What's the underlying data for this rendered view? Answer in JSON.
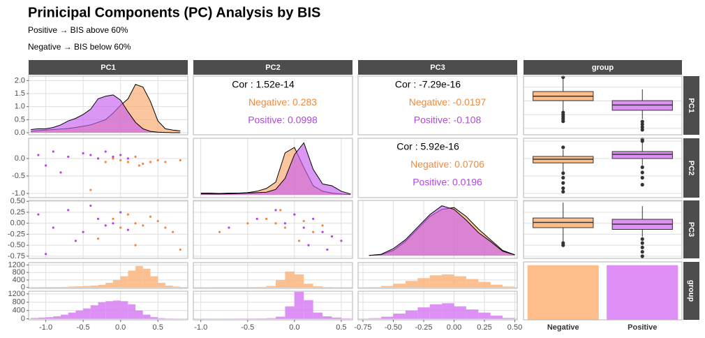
{
  "title": "Prinicipal Components (PC) Analysis by BIS",
  "subtitles": [
    "Positive → BIS above 60%",
    "Negative → BIS below 60%"
  ],
  "column_labels": [
    "PC1",
    "PC2",
    "PC3",
    "group"
  ],
  "row_labels": [
    "PC1",
    "PC2",
    "PC3",
    "group"
  ],
  "chart_data": [
    {
      "type": "density",
      "xlim": [
        -1.23,
        0.9
      ],
      "ylim": [
        -0.08,
        2.17
      ],
      "yticks": [
        {
          "value": 0,
          "label": "0.0"
        },
        0.5,
        {
          "value": 1,
          "label": "1.0"
        },
        1.5,
        {
          "value": 2,
          "label": "2.0"
        }
      ],
      "x": [
        -1.2,
        -1.1,
        -1.0,
        -0.9,
        -0.8,
        -0.7,
        -0.6,
        -0.5,
        -0.4,
        -0.3,
        -0.2,
        -0.1,
        0,
        0.1,
        0.2,
        0.3,
        0.4,
        0.5,
        0.6,
        0.7,
        0.8
      ],
      "series": [
        {
          "color": "#f9a86a",
          "values": [
            0.05,
            0.08,
            0.1,
            0.12,
            0.14,
            0.16,
            0.2,
            0.25,
            0.3,
            0.4,
            0.5,
            0.75,
            1.05,
            1.3,
            1.85,
            1.75,
            1.2,
            0.45,
            0.15,
            0.1,
            0.07
          ]
        },
        {
          "color": "#c660ee",
          "values": [
            0.12,
            0.15,
            0.15,
            0.2,
            0.3,
            0.45,
            0.55,
            0.7,
            0.9,
            1.3,
            1.4,
            1.45,
            1.25,
            0.8,
            0.4,
            0.15,
            0.05,
            0.02,
            0.01,
            0,
            0
          ]
        }
      ]
    },
    {
      "type": "correlation",
      "lines": [
        {
          "text": "Cor : 1.52e-14",
          "color": "#000000"
        },
        {
          "text": "Negative: 0.283",
          "color": "#f08a3e"
        },
        {
          "text": "Positive: 0.0998",
          "color": "#b545e8"
        }
      ]
    },
    {
      "type": "correlation",
      "lines": [
        {
          "text": "Cor : -7.29e-16",
          "color": "#000000"
        },
        {
          "text": "Negative: -0.0197",
          "color": "#f08a3e"
        },
        {
          "text": "Positive: -0.108",
          "color": "#b545e8"
        }
      ]
    },
    {
      "type": "boxplot",
      "ylim": [
        -1.23,
        0.9
      ],
      "series": [
        {
          "color": "#fdbe8b",
          "low": -0.36,
          "q1": 0.01,
          "median": 0.17,
          "q3": 0.34,
          "high": 0.8,
          "outliers": [
            0.86,
            -0.42,
            -0.5,
            -0.58,
            -0.66,
            -0.74
          ]
        },
        {
          "color": "#df90f6",
          "low": -0.66,
          "q1": -0.34,
          "median": -0.15,
          "q3": 0.01,
          "high": 0.42,
          "outliers": [
            -0.75,
            -0.85,
            -0.95,
            -1.05
          ]
        }
      ]
    },
    {
      "type": "scatter",
      "xlim": [
        -1.23,
        0.9
      ],
      "ylim": [
        -1.12,
        0.58
      ],
      "yticks": [
        {
          "value": -1,
          "label": "-1.0"
        },
        -0.5,
        {
          "value": 0,
          "label": "0.0"
        }
      ],
      "series": [
        {
          "color": "#f4873d",
          "x": [
            -0.2,
            -0.1,
            0,
            0.1,
            0.2,
            0.3,
            0.4,
            0.5,
            0.6,
            0.8,
            -0.4,
            0.25
          ],
          "values": [
            -0.1,
            0.0,
            -0.05,
            -0.1,
            0.05,
            -0.15,
            -0.1,
            -0.05,
            -0.1,
            -0.05,
            -0.9,
            -0.2
          ]
        },
        {
          "color": "#b545e8",
          "x": [
            -1.1,
            -0.9,
            -0.7,
            -0.5,
            -0.4,
            -0.3,
            -0.2,
            -0.1,
            0,
            0.1,
            -0.8,
            -1.0
          ],
          "values": [
            0.1,
            0.2,
            0.05,
            0.15,
            0.1,
            0.0,
            0.2,
            0.05,
            0.1,
            0.0,
            -0.4,
            -0.2
          ]
        }
      ]
    },
    {
      "type": "density",
      "xlim": [
        -1.08,
        0.62
      ],
      "ylim": [
        -0.15,
        3.1
      ],
      "x": [
        -1.0,
        -0.9,
        -0.8,
        -0.7,
        -0.6,
        -0.5,
        -0.4,
        -0.3,
        -0.2,
        -0.1,
        0,
        0.1,
        0.2,
        0.3,
        0.4,
        0.5,
        0.6
      ],
      "series": [
        {
          "color": "#f9a86a",
          "values": [
            0.1,
            0.1,
            0.08,
            0.1,
            0.1,
            0.12,
            0.2,
            0.35,
            0.7,
            2.3,
            2.6,
            1.5,
            0.5,
            0.2,
            0.1,
            0.05,
            0.02
          ]
        },
        {
          "color": "#c660ee",
          "values": [
            0.05,
            0.05,
            0.05,
            0.06,
            0.08,
            0.1,
            0.12,
            0.15,
            0.3,
            0.9,
            2.2,
            2.85,
            1.4,
            0.6,
            0.5,
            0.2,
            0.05
          ]
        }
      ]
    },
    {
      "type": "correlation",
      "lines": [
        {
          "text": "Cor : 5.92e-16",
          "color": "#000000"
        },
        {
          "text": "Negative: 0.0706",
          "color": "#f08a3e"
        },
        {
          "text": "Positive: 0.0196",
          "color": "#b545e8"
        }
      ]
    },
    {
      "type": "boxplot",
      "ylim": [
        -1.12,
        0.58
      ],
      "series": [
        {
          "color": "#fdbe8b",
          "low": -0.37,
          "q1": -0.125,
          "median": -0.02,
          "q3": 0.06,
          "high": 0.25,
          "outliers": [
            0.32,
            -0.42,
            -0.55,
            -0.7,
            -0.85,
            -0.95
          ]
        },
        {
          "color": "#df90f6",
          "low": -0.19,
          "q1": 0.0,
          "median": 0.12,
          "q3": 0.2,
          "high": 0.45,
          "outliers": [
            0.5,
            0.55,
            -0.25,
            -0.4,
            -0.55,
            -0.75
          ]
        }
      ]
    },
    {
      "type": "scatter",
      "xlim": [
        -1.23,
        0.9
      ],
      "ylim": [
        -0.8,
        0.52
      ],
      "yticks": [
        -0.75,
        {
          "value": -0.5,
          "label": "-0.50"
        },
        -0.25,
        {
          "value": 0,
          "label": "0.00"
        },
        0.25,
        {
          "value": 0.5,
          "label": "0.50"
        }
      ],
      "series": [
        {
          "color": "#f4873d",
          "x": [
            -0.1,
            0,
            0.1,
            0.2,
            0.3,
            0.4,
            0.5,
            0.6,
            0.7,
            -0.3,
            0.2,
            0.8
          ],
          "values": [
            0.1,
            -0.1,
            0.2,
            0.0,
            -0.05,
            0.15,
            0.05,
            -0.1,
            -0.2,
            -0.35,
            -0.5,
            -0.6
          ]
        },
        {
          "color": "#b545e8",
          "x": [
            -1.1,
            -0.9,
            -0.7,
            -0.5,
            -0.3,
            -0.2,
            -0.1,
            0,
            0.1,
            -0.6,
            -1.0,
            -0.4
          ],
          "values": [
            0.2,
            -0.1,
            0.3,
            -0.2,
            0.1,
            -0.05,
            0.0,
            0.25,
            -0.15,
            -0.4,
            -0.7,
            0.4
          ]
        }
      ]
    },
    {
      "type": "scatter",
      "xlim": [
        -1.08,
        0.62
      ],
      "ylim": [
        -0.8,
        0.52
      ],
      "series": [
        {
          "color": "#f4873d",
          "x": [
            -0.3,
            -0.2,
            -0.1,
            0,
            0.1,
            0.2,
            0.3,
            -0.5,
            -0.8,
            0.4,
            0.05,
            -0.15
          ],
          "values": [
            0.1,
            0.0,
            -0.1,
            0.2,
            0.05,
            -0.2,
            -0.05,
            0.0,
            -0.2,
            -0.3,
            -0.4,
            0.3
          ]
        },
        {
          "color": "#b545e8",
          "x": [
            0,
            0.1,
            0.2,
            0.3,
            0.4,
            0.5,
            -0.1,
            -0.2,
            -0.4,
            0.15,
            0.35,
            -0.7
          ],
          "values": [
            0.2,
            -0.1,
            0.1,
            -0.2,
            -0.3,
            -0.4,
            0.0,
            0.3,
            0.1,
            -0.5,
            -0.6,
            -0.1
          ]
        }
      ]
    },
    {
      "type": "density",
      "xlim": [
        -0.79,
        0.52
      ],
      "ylim": [
        -0.15,
        3.1
      ],
      "x": [
        -0.7,
        -0.6,
        -0.5,
        -0.4,
        -0.3,
        -0.2,
        -0.1,
        0,
        0.1,
        0.2,
        0.3,
        0.4,
        0.5
      ],
      "series": [
        {
          "color": "#f9a86a",
          "values": [
            0.02,
            0.05,
            0.3,
            0.8,
            1.5,
            2.2,
            2.6,
            2.7,
            2.2,
            1.5,
            0.9,
            0.3,
            0.05
          ]
        },
        {
          "color": "#c660ee",
          "values": [
            0.02,
            0.08,
            0.4,
            0.9,
            1.6,
            2.3,
            2.8,
            2.6,
            2.0,
            1.3,
            0.8,
            0.25,
            0.05
          ]
        }
      ]
    },
    {
      "type": "boxplot",
      "ylim": [
        -0.8,
        0.52
      ],
      "series": [
        {
          "color": "#fdbe8b",
          "low": -0.41,
          "q1": -0.1,
          "median": 0.02,
          "q3": 0.12,
          "high": 0.47,
          "outliers": [
            -0.45,
            -0.5
          ]
        },
        {
          "color": "#df90f6",
          "low": -0.31,
          "q1": -0.14,
          "median": -0.02,
          "q3": 0.09,
          "high": 0.39,
          "outliers": [
            -0.36,
            -0.45,
            -0.55,
            -0.65,
            -0.75
          ]
        }
      ]
    },
    {
      "type": "histogram",
      "xlim": [
        -1.23,
        0.9
      ],
      "ylim": [
        -50,
        1330
      ],
      "xticks": [
        {
          "value": -1,
          "label": "-1.0"
        },
        -0.5,
        {
          "value": 0,
          "label": "0.0"
        },
        0.5
      ],
      "yticks": [
        0,
        400,
        800,
        1200
      ],
      "bins": [
        -1.2,
        -1.1,
        -1.0,
        -0.9,
        -0.8,
        -0.7,
        -0.6,
        -0.5,
        -0.4,
        -0.3,
        -0.2,
        -0.1,
        0,
        0.1,
        0.2,
        0.3,
        0.4,
        0.5,
        0.6,
        0.7,
        0.8,
        0.9
      ],
      "series": [
        {
          "color": "#fbb47d",
          "values": [
            10,
            15,
            20,
            25,
            30,
            50,
            60,
            80,
            100,
            140,
            250,
            400,
            600,
            900,
            1150,
            1000,
            600,
            250,
            100,
            50,
            20
          ]
        },
        {
          "color": "#d77ef3",
          "values": [
            40,
            60,
            80,
            120,
            200,
            300,
            400,
            500,
            650,
            800,
            850,
            880,
            850,
            700,
            400,
            200,
            80,
            30,
            10,
            5,
            0
          ]
        }
      ]
    },
    {
      "type": "histogram",
      "xlim": [
        -1.08,
        0.62
      ],
      "ylim": [
        -50,
        1330
      ],
      "xticks": [
        {
          "value": -1,
          "label": "-1.0"
        },
        -0.5,
        {
          "value": 0,
          "label": "0.0"
        },
        0.5
      ],
      "bins": [
        -1.1,
        -1.0,
        -0.9,
        -0.8,
        -0.7,
        -0.6,
        -0.5,
        -0.4,
        -0.3,
        -0.2,
        -0.1,
        0,
        0.1,
        0.2,
        0.3,
        0.4,
        0.5,
        0.6
      ],
      "series": [
        {
          "color": "#fbb47d",
          "values": [
            5,
            10,
            15,
            15,
            20,
            20,
            25,
            30,
            80,
            400,
            850,
            700,
            200,
            60,
            20,
            10,
            5
          ]
        },
        {
          "color": "#d77ef3",
          "values": [
            2,
            5,
            5,
            5,
            5,
            10,
            10,
            15,
            30,
            100,
            600,
            1300,
            900,
            300,
            120,
            60,
            20
          ]
        }
      ]
    },
    {
      "type": "histogram",
      "xlim": [
        -0.79,
        0.52
      ],
      "ylim": [
        -50,
        1330
      ],
      "xticks": [
        -0.75,
        {
          "value": -0.5,
          "label": "-0.50"
        },
        -0.25,
        {
          "value": 0,
          "label": "0.00"
        },
        0.25,
        {
          "value": 0.5,
          "label": "0.50"
        }
      ],
      "bins": [
        -0.8,
        -0.7,
        -0.6,
        -0.5,
        -0.4,
        -0.3,
        -0.2,
        -0.1,
        0,
        0.1,
        0.2,
        0.3,
        0.4,
        0.5
      ],
      "series": [
        {
          "color": "#fbb47d",
          "values": [
            5,
            20,
            80,
            200,
            350,
            500,
            650,
            700,
            600,
            450,
            300,
            150,
            50
          ]
        },
        {
          "color": "#d77ef3",
          "values": [
            5,
            30,
            100,
            250,
            400,
            550,
            700,
            750,
            600,
            450,
            300,
            150,
            40
          ]
        }
      ]
    },
    {
      "type": "bar",
      "categories": [
        "Negative",
        "Positive"
      ],
      "values": [
        5000,
        5000
      ],
      "colors": [
        "#fdbe8b",
        "#df90f6"
      ],
      "ylim": [
        0,
        5300
      ]
    }
  ]
}
